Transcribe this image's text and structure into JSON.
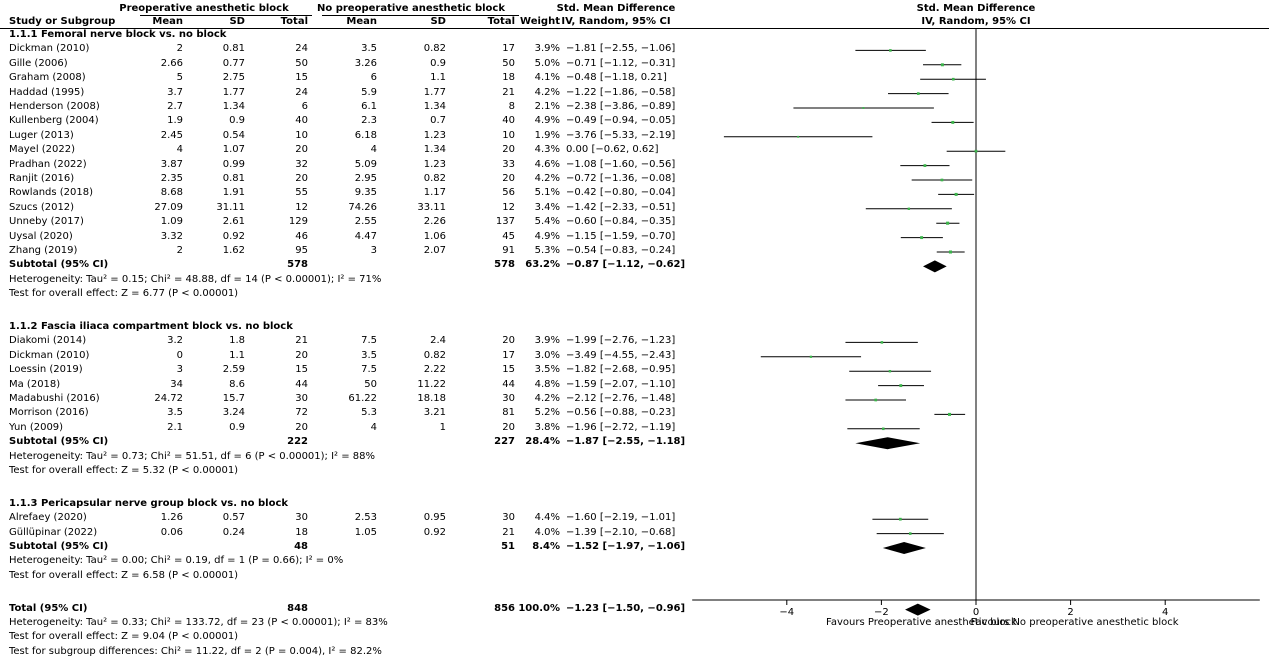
{
  "header": {
    "group1": "Preoperative anesthetic block",
    "group2": "No preoperative anesthetic block",
    "study_or_subgroup": "Study or Subgroup",
    "mean": "Mean",
    "sd": "SD",
    "total": "Total",
    "weight": "Weight",
    "effect_title": "Std. Mean Difference",
    "effect_method": "IV, Random, 95% CI"
  },
  "subgroups": [
    {
      "title": "1.1.1 Femoral nerve block vs. no block",
      "studies": [
        {
          "name": "Dickman (2010)",
          "m1": "2",
          "sd1": "0.81",
          "n1": "24",
          "m2": "3.5",
          "sd2": "0.82",
          "n2": "17",
          "weight": "3.9%",
          "ci": "−1.81 [−2.55, −1.06]"
        },
        {
          "name": "Gille (2006)",
          "m1": "2.66",
          "sd1": "0.77",
          "n1": "50",
          "m2": "3.26",
          "sd2": "0.9",
          "n2": "50",
          "weight": "5.0%",
          "ci": "−0.71 [−1.12, −0.31]"
        },
        {
          "name": "Graham (2008)",
          "m1": "5",
          "sd1": "2.75",
          "n1": "15",
          "m2": "6",
          "sd2": "1.1",
          "n2": "18",
          "weight": "4.1%",
          "ci": "−0.48 [−1.18, 0.21]"
        },
        {
          "name": "Haddad (1995)",
          "m1": "3.7",
          "sd1": "1.77",
          "n1": "24",
          "m2": "5.9",
          "sd2": "1.77",
          "n2": "21",
          "weight": "4.2%",
          "ci": "−1.22 [−1.86, −0.58]"
        },
        {
          "name": "Henderson (2008)",
          "m1": "2.7",
          "sd1": "1.34",
          "n1": "6",
          "m2": "6.1",
          "sd2": "1.34",
          "n2": "8",
          "weight": "2.1%",
          "ci": "−2.38 [−3.86, −0.89]"
        },
        {
          "name": "Kullenberg (2004)",
          "m1": "1.9",
          "sd1": "0.9",
          "n1": "40",
          "m2": "2.3",
          "sd2": "0.7",
          "n2": "40",
          "weight": "4.9%",
          "ci": "−0.49 [−0.94, −0.05]"
        },
        {
          "name": "Luger (2013)",
          "m1": "2.45",
          "sd1": "0.54",
          "n1": "10",
          "m2": "6.18",
          "sd2": "1.23",
          "n2": "10",
          "weight": "1.9%",
          "ci": "−3.76 [−5.33, −2.19]"
        },
        {
          "name": "Mayel (2022)",
          "m1": "4",
          "sd1": "1.07",
          "n1": "20",
          "m2": "4",
          "sd2": "1.34",
          "n2": "20",
          "weight": "4.3%",
          "ci": "0.00 [−0.62, 0.62]"
        },
        {
          "name": "Pradhan (2022)",
          "m1": "3.87",
          "sd1": "0.99",
          "n1": "32",
          "m2": "5.09",
          "sd2": "1.23",
          "n2": "33",
          "weight": "4.6%",
          "ci": "−1.08 [−1.60, −0.56]"
        },
        {
          "name": "Ranjit (2016)",
          "m1": "2.35",
          "sd1": "0.81",
          "n1": "20",
          "m2": "2.95",
          "sd2": "0.82",
          "n2": "20",
          "weight": "4.2%",
          "ci": "−0.72 [−1.36, −0.08]"
        },
        {
          "name": "Rowlands (2018)",
          "m1": "8.68",
          "sd1": "1.91",
          "n1": "55",
          "m2": "9.35",
          "sd2": "1.17",
          "n2": "56",
          "weight": "5.1%",
          "ci": "−0.42 [−0.80, −0.04]"
        },
        {
          "name": "Szucs (2012)",
          "m1": "27.09",
          "sd1": "31.11",
          "n1": "12",
          "m2": "74.26",
          "sd2": "33.11",
          "n2": "12",
          "weight": "3.4%",
          "ci": "−1.42 [−2.33, −0.51]"
        },
        {
          "name": "Unneby (2017)",
          "m1": "1.09",
          "sd1": "2.61",
          "n1": "129",
          "m2": "2.55",
          "sd2": "2.26",
          "n2": "137",
          "weight": "5.4%",
          "ci": "−0.60 [−0.84, −0.35]"
        },
        {
          "name": "Uysal (2020)",
          "m1": "3.32",
          "sd1": "0.92",
          "n1": "46",
          "m2": "4.47",
          "sd2": "1.06",
          "n2": "45",
          "weight": "4.9%",
          "ci": "−1.15 [−1.59, −0.70]"
        },
        {
          "name": "Zhang (2019)",
          "m1": "2",
          "sd1": "1.62",
          "n1": "95",
          "m2": "3",
          "sd2": "2.07",
          "n2": "91",
          "weight": "5.3%",
          "ci": "−0.54 [−0.83, −0.24]"
        }
      ],
      "subtotal": {
        "label": "Subtotal (95% CI)",
        "n1": "578",
        "n2": "578",
        "weight": "63.2%",
        "ci": "−0.87 [−1.12, −0.62]"
      },
      "heterogeneity": "Heterogeneity: Tau² = 0.15; Chi² = 48.88, df = 14 (P < 0.00001); I² = 71%",
      "overall": "Test for overall effect: Z = 6.77 (P < 0.00001)"
    },
    {
      "title": "1.1.2 Fascia iliaca compartment block vs. no block",
      "studies": [
        {
          "name": "Diakomi (2014)",
          "m1": "3.2",
          "sd1": "1.8",
          "n1": "21",
          "m2": "7.5",
          "sd2": "2.4",
          "n2": "20",
          "weight": "3.9%",
          "ci": "−1.99 [−2.76, −1.23]"
        },
        {
          "name": "Dickman (2010)",
          "m1": "0",
          "sd1": "1.1",
          "n1": "20",
          "m2": "3.5",
          "sd2": "0.82",
          "n2": "17",
          "weight": "3.0%",
          "ci": "−3.49 [−4.55, −2.43]"
        },
        {
          "name": "Loessin (2019)",
          "m1": "3",
          "sd1": "2.59",
          "n1": "15",
          "m2": "7.5",
          "sd2": "2.22",
          "n2": "15",
          "weight": "3.5%",
          "ci": "−1.82 [−2.68, −0.95]"
        },
        {
          "name": "Ma (2018)",
          "m1": "34",
          "sd1": "8.6",
          "n1": "44",
          "m2": "50",
          "sd2": "11.22",
          "n2": "44",
          "weight": "4.8%",
          "ci": "−1.59 [−2.07, −1.10]"
        },
        {
          "name": "Madabushi (2016)",
          "m1": "24.72",
          "sd1": "15.7",
          "n1": "30",
          "m2": "61.22",
          "sd2": "18.18",
          "n2": "30",
          "weight": "4.2%",
          "ci": "−2.12 [−2.76, −1.48]"
        },
        {
          "name": "Morrison (2016)",
          "m1": "3.5",
          "sd1": "3.24",
          "n1": "72",
          "m2": "5.3",
          "sd2": "3.21",
          "n2": "81",
          "weight": "5.2%",
          "ci": "−0.56 [−0.88, −0.23]"
        },
        {
          "name": "Yun (2009)",
          "m1": "2.1",
          "sd1": "0.9",
          "n1": "20",
          "m2": "4",
          "sd2": "1",
          "n2": "20",
          "weight": "3.8%",
          "ci": "−1.96 [−2.72, −1.19]"
        }
      ],
      "subtotal": {
        "label": "Subtotal (95% CI)",
        "n1": "222",
        "n2": "227",
        "weight": "28.4%",
        "ci": "−1.87 [−2.55, −1.18]"
      },
      "heterogeneity": "Heterogeneity: Tau² = 0.73; Chi² = 51.51, df = 6 (P < 0.00001); I² = 88%",
      "overall": "Test for overall effect: Z = 5.32 (P < 0.00001)"
    },
    {
      "title": "1.1.3 Pericapsular nerve group block vs. no block",
      "studies": [
        {
          "name": "Alrefaey (2020)",
          "m1": "1.26",
          "sd1": "0.57",
          "n1": "30",
          "m2": "2.53",
          "sd2": "0.95",
          "n2": "30",
          "weight": "4.4%",
          "ci": "−1.60 [−2.19, −1.01]"
        },
        {
          "name": "Güllüpinar (2022)",
          "m1": "0.06",
          "sd1": "0.24",
          "n1": "18",
          "m2": "1.05",
          "sd2": "0.92",
          "n2": "21",
          "weight": "4.0%",
          "ci": "−1.39 [−2.10, −0.68]"
        }
      ],
      "subtotal": {
        "label": "Subtotal (95% CI)",
        "n1": "48",
        "n2": "51",
        "weight": "8.4%",
        "ci": "−1.52 [−1.97, −1.06]"
      },
      "heterogeneity": "Heterogeneity: Tau² = 0.00; Chi² = 0.19, df = 1 (P = 0.66); I² = 0%",
      "overall": "Test for overall effect: Z = 6.58 (P < 0.00001)"
    }
  ],
  "total": {
    "label": "Total (95% CI)",
    "n1": "848",
    "n2": "856",
    "weight": "100.0%",
    "ci": "−1.23 [−1.50, −0.96]",
    "heterogeneity": "Heterogeneity: Tau² = 0.33; Chi² = 133.72, df = 23 (P < 0.00001); I² = 83%",
    "overall": "Test for overall effect: Z = 9.04 (P < 0.00001)",
    "subgroup_diff": "Test for subgroup differences: Chi² = 11.22, df = 2 (P = 0.004), I² = 82.2%"
  },
  "chart_data": {
    "type": "forest",
    "title": "Std. Mean Difference",
    "subtitle": "IV, Random, 95% CI",
    "xlim": [
      -6,
      6
    ],
    "xticks": [
      -4,
      -2,
      0,
      2,
      4
    ],
    "xtick_labels": [
      "−4",
      "−2",
      "0",
      "2",
      "4"
    ],
    "favours_left": "Favours Preoperative anesthetic block",
    "favours_right": "Favours No preoperative anesthetic block",
    "marker_color": "#3cb44b",
    "studies": [
      {
        "subgroup": 0,
        "name": "Dickman (2010)",
        "est": -1.81,
        "lo": -2.55,
        "hi": -1.06,
        "weight": 3.9
      },
      {
        "subgroup": 0,
        "name": "Gille (2006)",
        "est": -0.71,
        "lo": -1.12,
        "hi": -0.31,
        "weight": 5.0
      },
      {
        "subgroup": 0,
        "name": "Graham (2008)",
        "est": -0.48,
        "lo": -1.18,
        "hi": 0.21,
        "weight": 4.1
      },
      {
        "subgroup": 0,
        "name": "Haddad (1995)",
        "est": -1.22,
        "lo": -1.86,
        "hi": -0.58,
        "weight": 4.2
      },
      {
        "subgroup": 0,
        "name": "Henderson (2008)",
        "est": -2.38,
        "lo": -3.86,
        "hi": -0.89,
        "weight": 2.1
      },
      {
        "subgroup": 0,
        "name": "Kullenberg (2004)",
        "est": -0.49,
        "lo": -0.94,
        "hi": -0.05,
        "weight": 4.9
      },
      {
        "subgroup": 0,
        "name": "Luger (2013)",
        "est": -3.76,
        "lo": -5.33,
        "hi": -2.19,
        "weight": 1.9
      },
      {
        "subgroup": 0,
        "name": "Mayel (2022)",
        "est": 0.0,
        "lo": -0.62,
        "hi": 0.62,
        "weight": 4.3
      },
      {
        "subgroup": 0,
        "name": "Pradhan (2022)",
        "est": -1.08,
        "lo": -1.6,
        "hi": -0.56,
        "weight": 4.6
      },
      {
        "subgroup": 0,
        "name": "Ranjit (2016)",
        "est": -0.72,
        "lo": -1.36,
        "hi": -0.08,
        "weight": 4.2
      },
      {
        "subgroup": 0,
        "name": "Rowlands (2018)",
        "est": -0.42,
        "lo": -0.8,
        "hi": -0.04,
        "weight": 5.1
      },
      {
        "subgroup": 0,
        "name": "Szucs (2012)",
        "est": -1.42,
        "lo": -2.33,
        "hi": -0.51,
        "weight": 3.4
      },
      {
        "subgroup": 0,
        "name": "Unneby (2017)",
        "est": -0.6,
        "lo": -0.84,
        "hi": -0.35,
        "weight": 5.4
      },
      {
        "subgroup": 0,
        "name": "Uysal (2020)",
        "est": -1.15,
        "lo": -1.59,
        "hi": -0.7,
        "weight": 4.9
      },
      {
        "subgroup": 0,
        "name": "Zhang (2019)",
        "est": -0.54,
        "lo": -0.83,
        "hi": -0.24,
        "weight": 5.3
      },
      {
        "subgroup": 1,
        "name": "Diakomi (2014)",
        "est": -1.99,
        "lo": -2.76,
        "hi": -1.23,
        "weight": 3.9
      },
      {
        "subgroup": 1,
        "name": "Dickman (2010)",
        "est": -3.49,
        "lo": -4.55,
        "hi": -2.43,
        "weight": 3.0
      },
      {
        "subgroup": 1,
        "name": "Loessin (2019)",
        "est": -1.82,
        "lo": -2.68,
        "hi": -0.95,
        "weight": 3.5
      },
      {
        "subgroup": 1,
        "name": "Ma (2018)",
        "est": -1.59,
        "lo": -2.07,
        "hi": -1.1,
        "weight": 4.8
      },
      {
        "subgroup": 1,
        "name": "Madabushi (2016)",
        "est": -2.12,
        "lo": -2.76,
        "hi": -1.48,
        "weight": 4.2
      },
      {
        "subgroup": 1,
        "name": "Morrison (2016)",
        "est": -0.56,
        "lo": -0.88,
        "hi": -0.23,
        "weight": 5.2
      },
      {
        "subgroup": 1,
        "name": "Yun (2009)",
        "est": -1.96,
        "lo": -2.72,
        "hi": -1.19,
        "weight": 3.8
      },
      {
        "subgroup": 2,
        "name": "Alrefaey (2020)",
        "est": -1.6,
        "lo": -2.19,
        "hi": -1.01,
        "weight": 4.4
      },
      {
        "subgroup": 2,
        "name": "Güllüpinar (2022)",
        "est": -1.39,
        "lo": -2.1,
        "hi": -0.68,
        "weight": 4.0
      }
    ],
    "pooled": [
      {
        "label": "Subtotal (95% CI)",
        "subgroup": 0,
        "est": -0.87,
        "lo": -1.12,
        "hi": -0.62
      },
      {
        "label": "Subtotal (95% CI)",
        "subgroup": 1,
        "est": -1.87,
        "lo": -2.55,
        "hi": -1.18
      },
      {
        "label": "Subtotal (95% CI)",
        "subgroup": 2,
        "est": -1.52,
        "lo": -1.97,
        "hi": -1.06
      },
      {
        "label": "Total (95% CI)",
        "subgroup": null,
        "est": -1.23,
        "lo": -1.5,
        "hi": -0.96
      }
    ]
  }
}
